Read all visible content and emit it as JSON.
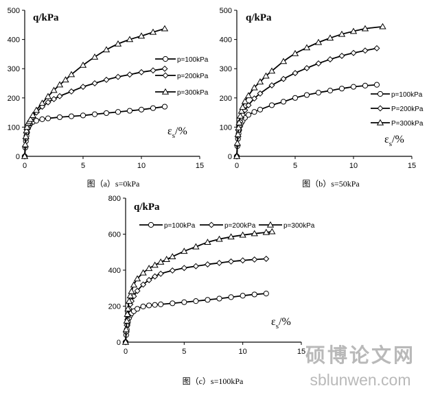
{
  "charts": [
    {
      "caption": "图（a）s=0kPa",
      "ylabel": "q/kPa",
      "xlabel_main": "ε",
      "xlabel_sub": "s",
      "xlabel_tail": "/%",
      "xlim": [
        0,
        15
      ],
      "ylim": [
        0,
        500
      ],
      "xticks": [
        "0",
        "5",
        "10",
        "15"
      ],
      "yticks": [
        "0",
        "100",
        "200",
        "300",
        "400",
        "500"
      ],
      "legend_position": "right",
      "series": [
        {
          "name": "p=100kPa",
          "marker": "circle",
          "x": [
            0,
            0.05,
            0.1,
            0.15,
            0.2,
            0.3,
            0.4,
            0.5,
            0.7,
            1.0,
            1.5,
            2.0,
            3.0,
            4.0,
            5.0,
            6.0,
            7.0,
            8.0,
            9.0,
            10.0,
            11.0,
            12.0
          ],
          "y": [
            0,
            30,
            52,
            70,
            82,
            98,
            107,
            113,
            118,
            122,
            127,
            130,
            134,
            137,
            140,
            144,
            148,
            152,
            156,
            160,
            165,
            170
          ]
        },
        {
          "name": "p=200kPa",
          "marker": "diamond",
          "x": [
            0,
            0.05,
            0.1,
            0.15,
            0.2,
            0.3,
            0.4,
            0.5,
            0.7,
            1.0,
            1.5,
            2.0,
            2.5,
            3.0,
            4.0,
            5.0,
            6.0,
            7.0,
            8.0,
            9.0,
            10.0,
            11.0,
            12.0
          ],
          "y": [
            0,
            35,
            60,
            80,
            92,
            108,
            115,
            122,
            135,
            150,
            170,
            185,
            196,
            206,
            222,
            238,
            250,
            262,
            272,
            280,
            288,
            294,
            300
          ]
        },
        {
          "name": "p=300kPa",
          "marker": "triangle",
          "x": [
            0,
            0.05,
            0.1,
            0.15,
            0.2,
            0.3,
            0.4,
            0.5,
            0.7,
            1.0,
            1.5,
            2.0,
            2.5,
            3.0,
            3.5,
            4.0,
            5.0,
            6.0,
            7.0,
            8.0,
            9.0,
            10.0,
            11.0,
            12.0
          ],
          "y": [
            0,
            40,
            68,
            88,
            100,
            114,
            120,
            127,
            140,
            158,
            182,
            205,
            226,
            245,
            262,
            280,
            312,
            340,
            365,
            385,
            400,
            412,
            425,
            437
          ]
        }
      ]
    },
    {
      "caption": "图（b）s=50kPa",
      "ylabel": "q/kPa",
      "xlabel_main": "ε",
      "xlabel_sub": "s",
      "xlabel_tail": "/%",
      "xlim": [
        0,
        15
      ],
      "ylim": [
        0,
        500
      ],
      "xticks": [
        "0",
        "5",
        "10",
        "15"
      ],
      "yticks": [
        "0",
        "100",
        "200",
        "300",
        "400",
        "500"
      ],
      "legend_position": "right",
      "series": [
        {
          "name": "p=100kPa",
          "marker": "circle",
          "x": [
            0,
            0.05,
            0.1,
            0.15,
            0.2,
            0.3,
            0.4,
            0.5,
            0.7,
            1.0,
            1.5,
            2.0,
            3.0,
            4.0,
            5.0,
            6.0,
            7.0,
            8.0,
            9.0,
            10.0,
            11.0,
            12.0
          ],
          "y": [
            0,
            35,
            60,
            78,
            90,
            105,
            115,
            122,
            132,
            142,
            152,
            160,
            175,
            187,
            200,
            210,
            218,
            225,
            232,
            238,
            242,
            245
          ]
        },
        {
          "name": "P=200kPa",
          "marker": "diamond",
          "x": [
            0,
            0.05,
            0.1,
            0.15,
            0.2,
            0.3,
            0.4,
            0.5,
            0.7,
            1.0,
            1.5,
            2.0,
            3.0,
            4.0,
            5.0,
            6.0,
            7.0,
            8.0,
            9.0,
            10.0,
            11.0,
            12.0
          ],
          "y": [
            0,
            40,
            68,
            88,
            102,
            120,
            132,
            142,
            158,
            175,
            198,
            215,
            243,
            265,
            285,
            302,
            318,
            332,
            344,
            354,
            362,
            370
          ]
        },
        {
          "name": "P=300kPa",
          "marker": "triangle",
          "x": [
            0,
            0.05,
            0.1,
            0.15,
            0.2,
            0.3,
            0.4,
            0.5,
            0.7,
            1.0,
            1.5,
            2.0,
            2.5,
            3.0,
            4.0,
            5.0,
            6.0,
            7.0,
            8.0,
            9.0,
            10.0,
            11.0,
            12.5
          ],
          "y": [
            0,
            45,
            75,
            98,
            115,
            138,
            155,
            168,
            188,
            208,
            235,
            255,
            275,
            292,
            325,
            352,
            372,
            390,
            405,
            418,
            428,
            437,
            444
          ]
        }
      ]
    },
    {
      "caption": "图（c）s=100kPa",
      "ylabel": "q/kPa",
      "xlabel_main": "ε",
      "xlabel_sub": "s",
      "xlabel_tail": "/%",
      "xlim": [
        0,
        15
      ],
      "ylim": [
        0,
        800
      ],
      "xticks": [
        "0",
        "5",
        "10",
        "15"
      ],
      "yticks": [
        "0",
        "200",
        "400",
        "600",
        "800"
      ],
      "legend_position": "top",
      "series": [
        {
          "name": "p=100kPa",
          "marker": "circle",
          "x": [
            0,
            0.05,
            0.1,
            0.15,
            0.2,
            0.3,
            0.4,
            0.5,
            0.7,
            1.0,
            1.5,
            2.0,
            2.5,
            3.0,
            4.0,
            5.0,
            6.0,
            7.0,
            8.0,
            9.0,
            10.0,
            11.0,
            12.0
          ],
          "y": [
            0,
            40,
            70,
            95,
            112,
            135,
            150,
            160,
            172,
            185,
            198,
            204,
            207,
            210,
            216,
            222,
            228,
            235,
            242,
            250,
            258,
            265,
            270
          ]
        },
        {
          "name": "p=200kPa",
          "marker": "diamond",
          "x": [
            0,
            0.05,
            0.1,
            0.15,
            0.2,
            0.3,
            0.4,
            0.5,
            0.7,
            1.0,
            1.5,
            2.0,
            2.5,
            3.0,
            4.0,
            5.0,
            6.0,
            7.0,
            8.0,
            9.0,
            10.0,
            11.0,
            12.0
          ],
          "y": [
            0,
            55,
            95,
            125,
            150,
            185,
            210,
            228,
            255,
            285,
            320,
            345,
            365,
            380,
            398,
            412,
            422,
            432,
            440,
            448,
            454,
            459,
            463
          ]
        },
        {
          "name": "p=300kPa",
          "marker": "triangle",
          "x": [
            0,
            0.05,
            0.1,
            0.15,
            0.2,
            0.3,
            0.4,
            0.5,
            0.7,
            1.0,
            1.5,
            2.0,
            2.5,
            3.0,
            3.5,
            4.0,
            5.0,
            6.0,
            7.0,
            8.0,
            9.0,
            10.0,
            11.0,
            12.0,
            12.5
          ],
          "y": [
            0,
            70,
            118,
            155,
            185,
            228,
            258,
            282,
            318,
            352,
            385,
            410,
            428,
            445,
            460,
            475,
            505,
            530,
            555,
            572,
            585,
            595,
            603,
            610,
            614
          ]
        }
      ]
    }
  ],
  "watermark": {
    "title": "硕博论文网",
    "url": "sblunwen.com"
  }
}
